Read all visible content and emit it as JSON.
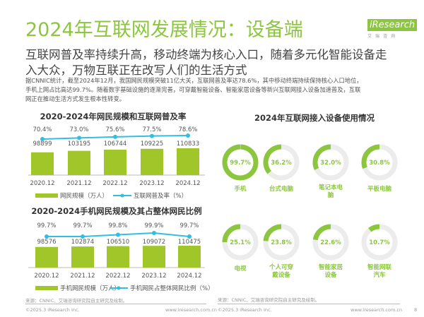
{
  "title": "2024年互联网发展情况：设备端",
  "logo": {
    "brand": "iResearch",
    "sub": "艾瑞咨询"
  },
  "subtitle": [
    "互联网普及率持续升高，移动终端为核心入口，随着多元化智能设备走",
    "入大众，万物互联正在改写人们的生活方式"
  ],
  "body": [
    "据CNNIC统计，截至2024年12月，我国网民规模突破11亿大关，互联网普及率达78.6%，其中移动终端持续保持核心入口地位，",
    "手机上网占比高达99.7%。随着数字基础设施的逐渐完善，可穿戴智能设备、智能家居设备等新兴互联网接入设备加速普及，互联",
    "网正在推动生活方式发生根本性转变。"
  ],
  "colors": {
    "accent": "#8cc63e",
    "bar": "#a0c62a",
    "line": "#33bde0",
    "ring_bg": "#ececec"
  },
  "chart_data": [
    {
      "type": "bar",
      "title": "2020-2024年网民规模和互联网普及率",
      "categories": [
        "2020.12",
        "2021.12",
        "2022.12",
        "2023.12",
        "2024.12"
      ],
      "series": [
        {
          "name": "网民规模（万人）",
          "type": "bar",
          "values": [
            98899,
            103195,
            106744,
            109225,
            110833
          ],
          "labels": [
            "98899",
            "103195",
            "106744",
            "109225",
            "110833"
          ]
        },
        {
          "name": "互联网普及率（%）",
          "type": "line",
          "values": [
            70.4,
            73.0,
            75.6,
            77.5,
            78.6
          ],
          "labels": [
            "70.4%",
            "73.0%",
            "75.6%",
            "77.5%",
            "78.6%"
          ]
        }
      ]
    },
    {
      "type": "bar",
      "title": "2020-2024手机网民规模及其占整体网民比例",
      "categories": [
        "2020.12",
        "2021.12",
        "2022.12",
        "2023.12",
        "2024.12"
      ],
      "series": [
        {
          "name": "手机网民规模（万人）",
          "type": "bar",
          "values": [
            98576,
            102874,
            106510,
            109072,
            110475
          ],
          "labels": [
            "98576",
            "102874",
            "106510",
            "109072",
            "110475"
          ]
        },
        {
          "name": "手机网民占整体网民比例（%）",
          "type": "line",
          "values": [
            99.7,
            99.7,
            99.8,
            99.9,
            99.7
          ],
          "labels": [
            "99.7%",
            "99.7%",
            "99.8%",
            "99.9%",
            "99.7%"
          ]
        }
      ]
    },
    {
      "type": "pie",
      "title": "2024年互联网接入设备使用情况",
      "categories": [
        "手机",
        "台式电脑",
        "笔记本电脑",
        "平板电脑",
        "电视",
        "个人可穿戴设备",
        "智能家居设备",
        "智能网联汽车"
      ],
      "values": [
        99.7,
        36.2,
        32.0,
        30.8,
        25.1,
        23.8,
        22.6,
        10.7
      ],
      "labels": [
        "99.7%",
        "36.2%",
        "32.0%",
        "30.8%",
        "25.1%",
        "23.8%",
        "22.6%",
        "10.7%"
      ]
    }
  ],
  "source_left": "来源：CNNIC、艾瑞咨询研究院自主研究及绘制。",
  "source_right": "来源：CNNIC、艾瑞咨询研究院自主研究及绘制。",
  "footer": {
    "copyright": "©2025.3 iResearch Inc.",
    "url": "www.iresearch.com.cn",
    "page": "8"
  }
}
